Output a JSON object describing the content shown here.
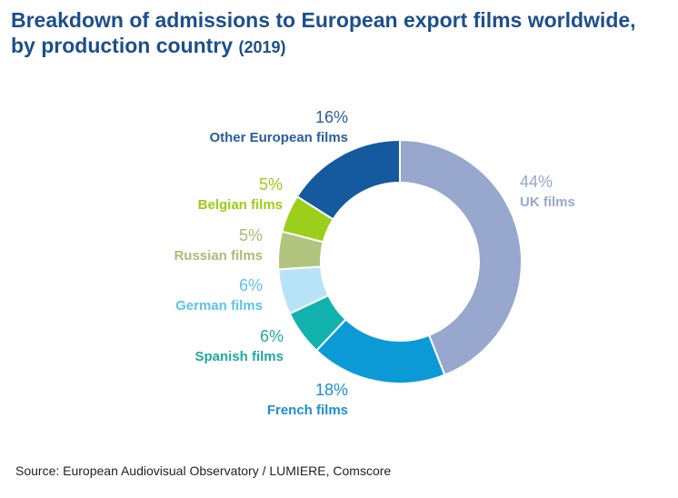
{
  "chart_data": {
    "type": "donut",
    "title_line1": "Breakdown of admissions to European export films worldwide,",
    "title_line2": "by production country",
    "title_year": "(2019)",
    "source": "Source: European Audiovisual Observatory / LUMIERE, Comscore",
    "slices": [
      {
        "name": "UK films",
        "value": 44,
        "label": "44%",
        "color": "#97a7cd",
        "label_color": "#97a7cd"
      },
      {
        "name": "French films",
        "value": 18,
        "label": "18%",
        "color": "#0b9ad6",
        "label_color": "#1a8fd0"
      },
      {
        "name": "Spanish films",
        "value": 6,
        "label": "6%",
        "color": "#12b3ae",
        "label_color": "#20aaa3"
      },
      {
        "name": "German films",
        "value": 6,
        "label": "6%",
        "color": "#b7e3f6",
        "label_color": "#5bc4e8"
      },
      {
        "name": "Russian films",
        "value": 5,
        "label": "5%",
        "color": "#b1c57e",
        "label_color": "#a9bd75"
      },
      {
        "name": "Belgian films",
        "value": 5,
        "label": "5%",
        "color": "#9ccf1c",
        "label_color": "#9ccc12"
      },
      {
        "name": "Other European films",
        "value": 16,
        "label": "16%",
        "color": "#155a9e",
        "label_color": "#2c5e9a"
      }
    ]
  }
}
